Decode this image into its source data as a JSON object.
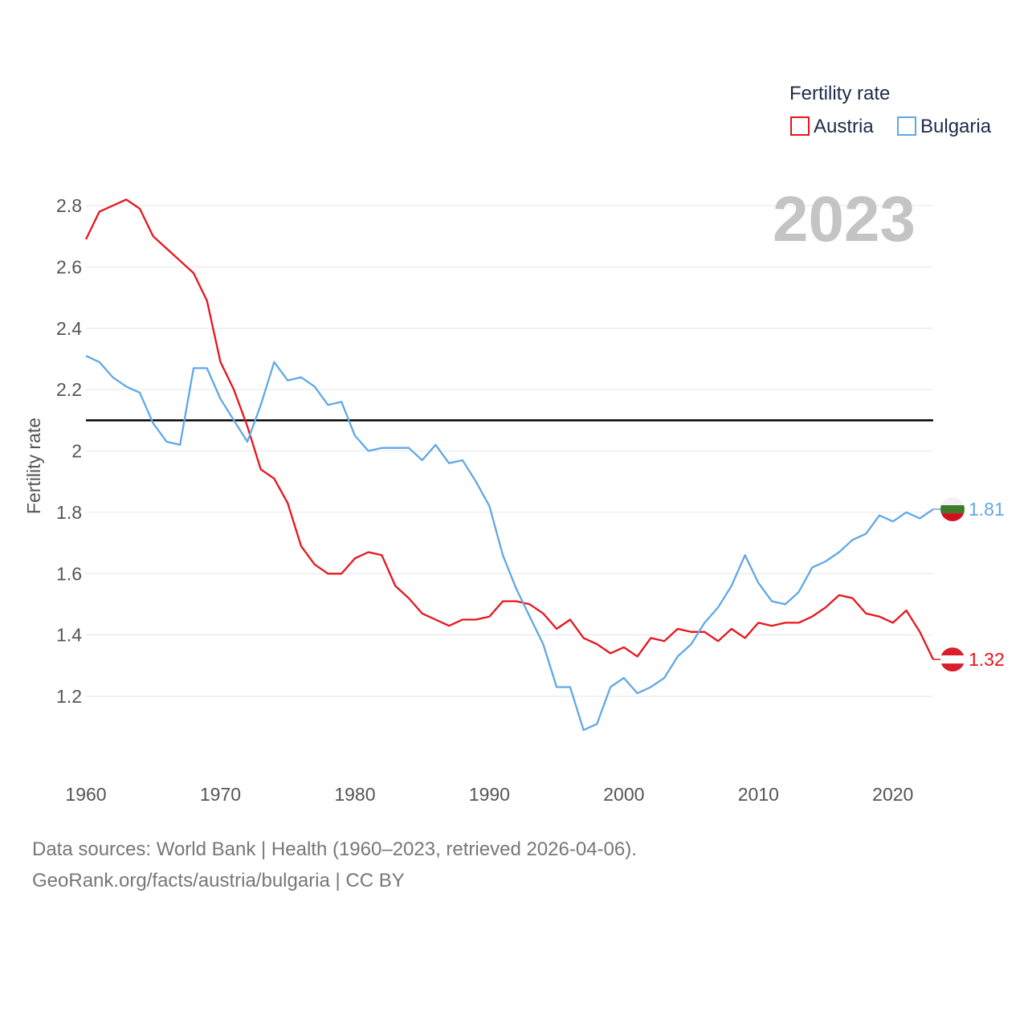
{
  "chart_data": {
    "type": "line",
    "legend_title": "Fertility rate",
    "ylabel": "Fertility rate",
    "year_label": "2023",
    "x": [
      1960,
      1961,
      1962,
      1963,
      1964,
      1965,
      1966,
      1967,
      1968,
      1969,
      1970,
      1971,
      1972,
      1973,
      1974,
      1975,
      1976,
      1977,
      1978,
      1979,
      1980,
      1981,
      1982,
      1983,
      1984,
      1985,
      1986,
      1987,
      1988,
      1989,
      1990,
      1991,
      1992,
      1993,
      1994,
      1995,
      1996,
      1997,
      1998,
      1999,
      2000,
      2001,
      2002,
      2003,
      2004,
      2005,
      2006,
      2007,
      2008,
      2009,
      2010,
      2011,
      2012,
      2013,
      2014,
      2015,
      2016,
      2017,
      2018,
      2019,
      2020,
      2021,
      2022,
      2023
    ],
    "xlim": [
      1960,
      2023
    ],
    "ylim": [
      1.0,
      2.9
    ],
    "x_ticks": [
      "1960",
      "1970",
      "1980",
      "1990",
      "2000",
      "2010",
      "2020"
    ],
    "y_ticks": [
      "1.2",
      "1.4",
      "1.6",
      "1.8",
      "2",
      "2.2",
      "2.4",
      "2.6",
      "2.8"
    ],
    "reference_line": 2.1,
    "series": [
      {
        "name": "Austria",
        "color": "#e8141c",
        "values": [
          2.69,
          2.78,
          2.8,
          2.82,
          2.79,
          2.7,
          2.66,
          2.62,
          2.58,
          2.49,
          2.29,
          2.2,
          2.08,
          1.94,
          1.91,
          1.83,
          1.69,
          1.63,
          1.6,
          1.6,
          1.65,
          1.67,
          1.66,
          1.56,
          1.52,
          1.47,
          1.45,
          1.43,
          1.45,
          1.45,
          1.46,
          1.51,
          1.51,
          1.5,
          1.47,
          1.42,
          1.45,
          1.39,
          1.37,
          1.34,
          1.36,
          1.33,
          1.39,
          1.38,
          1.42,
          1.41,
          1.41,
          1.38,
          1.42,
          1.39,
          1.44,
          1.43,
          1.44,
          1.44,
          1.46,
          1.49,
          1.53,
          1.52,
          1.47,
          1.46,
          1.44,
          1.48,
          1.41,
          1.32
        ],
        "end_label": "1.32"
      },
      {
        "name": "Bulgaria",
        "color": "#5fa8e8",
        "values": [
          2.31,
          2.29,
          2.24,
          2.21,
          2.19,
          2.09,
          2.03,
          2.02,
          2.27,
          2.27,
          2.17,
          2.1,
          2.03,
          2.15,
          2.29,
          2.23,
          2.24,
          2.21,
          2.15,
          2.16,
          2.05,
          2.0,
          2.01,
          2.01,
          2.01,
          1.97,
          2.02,
          1.96,
          1.97,
          1.9,
          1.82,
          1.66,
          1.55,
          1.46,
          1.37,
          1.23,
          1.23,
          1.09,
          1.11,
          1.23,
          1.26,
          1.21,
          1.23,
          1.26,
          1.33,
          1.37,
          1.44,
          1.49,
          1.56,
          1.66,
          1.57,
          1.51,
          1.5,
          1.54,
          1.62,
          1.64,
          1.67,
          1.71,
          1.73,
          1.79,
          1.77,
          1.8,
          1.78,
          1.81
        ],
        "end_label": "1.81"
      }
    ]
  },
  "footer": {
    "line1": "Data sources: World Bank | Health (1960–2023, retrieved 2026-04-06).",
    "line2": "GeoRank.org/facts/austria/bulgaria | CC BY"
  }
}
